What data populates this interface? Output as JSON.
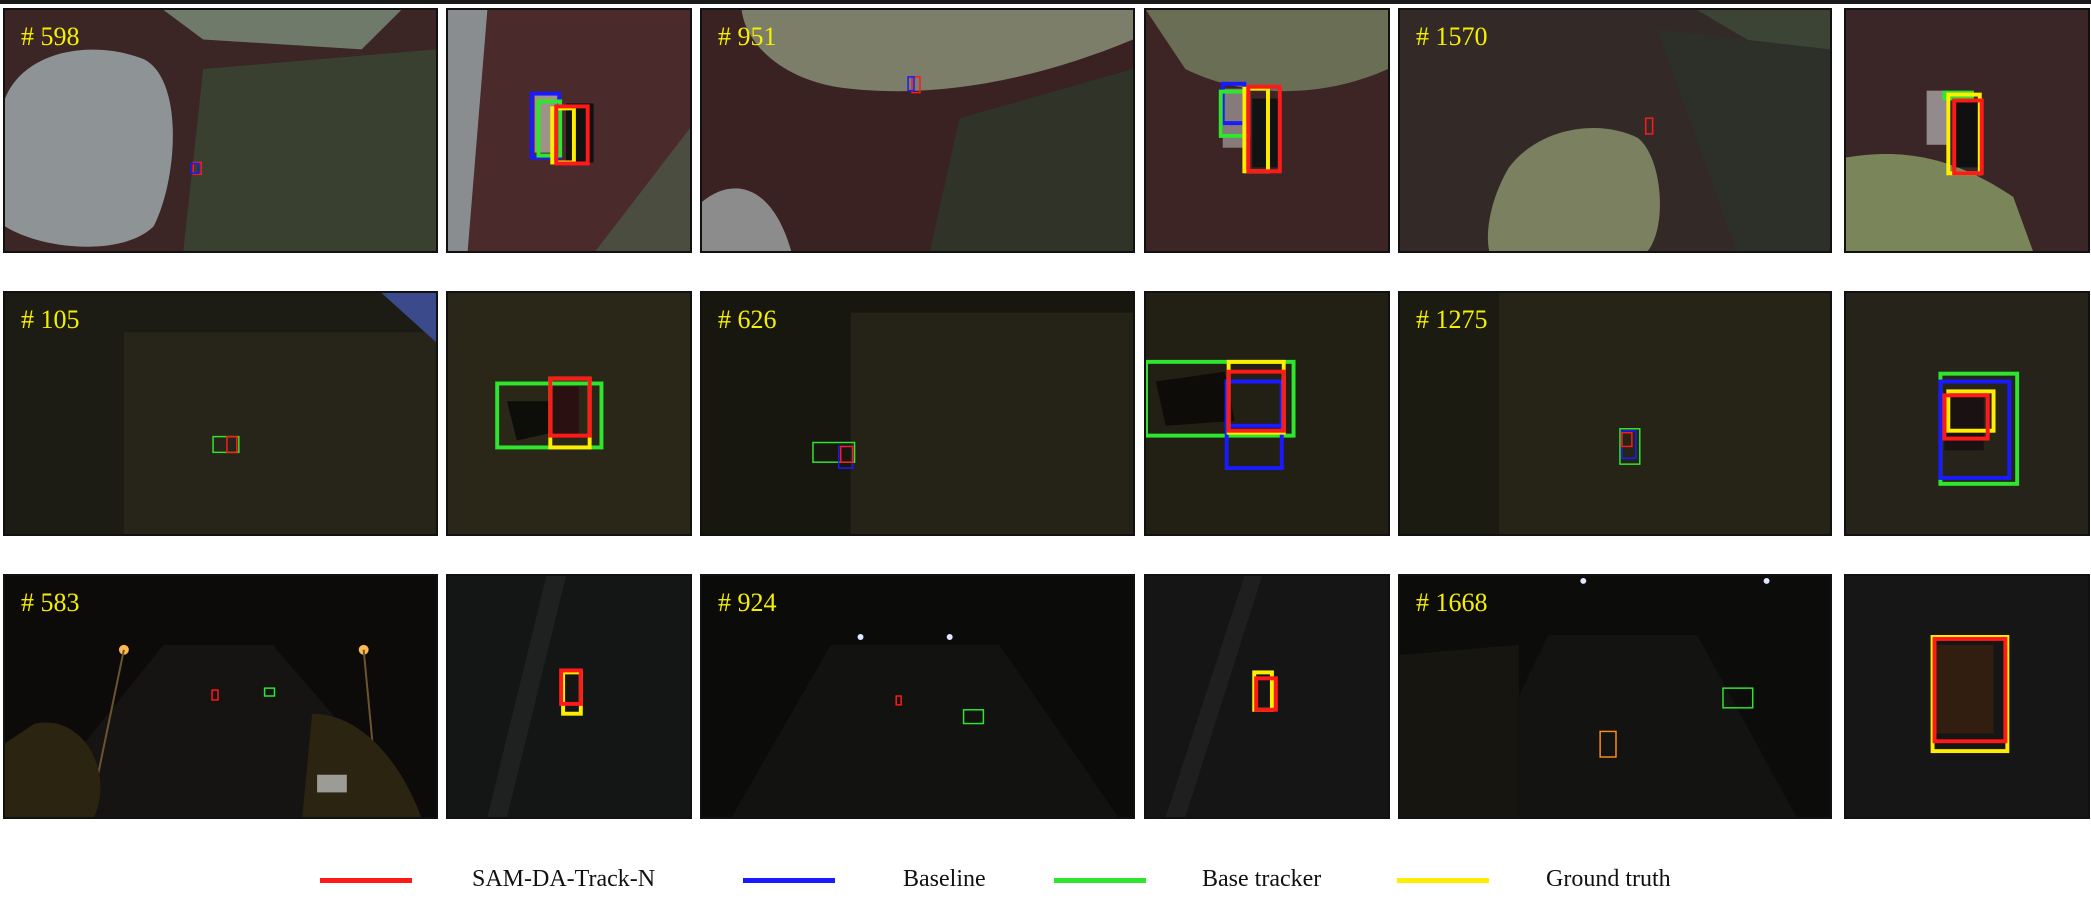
{
  "colors": {
    "sam_da_track_n": "#ff1a1a",
    "baseline": "#1a1aff",
    "base_tracker": "#2ee62e",
    "ground_truth": "#ffee00",
    "frame_label": "#f5f000"
  },
  "rows": [
    {
      "frames": [
        "# 598",
        "# 951",
        "# 1570"
      ]
    },
    {
      "frames": [
        "# 105",
        "# 626",
        "# 1275"
      ]
    },
    {
      "frames": [
        "# 583",
        "# 924",
        "# 1668"
      ]
    }
  ],
  "legend": {
    "items": [
      {
        "label": "SAM-DA-Track-N",
        "color": "#ff1a1a"
      },
      {
        "label": "Baseline",
        "color": "#1a1aff"
      },
      {
        "label": "Base tracker",
        "color": "#2ee62e"
      },
      {
        "label": "Ground truth",
        "color": "#ffee00"
      }
    ]
  }
}
